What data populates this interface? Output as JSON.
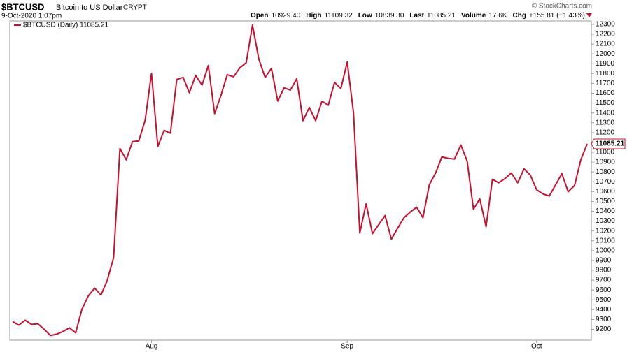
{
  "chart_data": {
    "type": "line",
    "title": "$BTCUSD",
    "subtitle": "Bitcoin to US Dollar",
    "exchange": "CRYPT",
    "date": "9-Oct-2020 1:07pm",
    "watermark": "© StockCharts.com",
    "stats": [
      {
        "label": "Open",
        "value": "10929.40"
      },
      {
        "label": "High",
        "value": "11109.32"
      },
      {
        "label": "Low",
        "value": "10839.30"
      },
      {
        "label": "Last",
        "value": "11085.21"
      },
      {
        "label": "Volume",
        "value": "17.6K"
      },
      {
        "label": "Chg",
        "value": "+155.81 (+1.43%)"
      }
    ],
    "last_value_label": "11085.21",
    "categories": [
      null,
      null,
      null,
      null,
      null,
      null,
      null,
      null,
      null,
      null,
      null,
      null,
      null,
      null,
      null,
      null,
      null,
      null,
      null,
      null,
      null,
      null,
      "Aug",
      null,
      null,
      null,
      null,
      null,
      null,
      null,
      null,
      null,
      null,
      null,
      null,
      null,
      null,
      null,
      null,
      null,
      null,
      null,
      null,
      null,
      null,
      null,
      null,
      null,
      null,
      null,
      null,
      null,
      null,
      "Sep",
      null,
      null,
      null,
      null,
      null,
      null,
      null,
      null,
      null,
      null,
      null,
      null,
      null,
      null,
      null,
      null,
      null,
      null,
      null,
      null,
      null,
      null,
      null,
      null,
      null,
      null,
      null,
      null,
      null,
      "Oct",
      null,
      null,
      null,
      null,
      null,
      null,
      null,
      null
    ],
    "series": [
      {
        "name": "$BTCUSD (Daily) 11085.21",
        "color": "#c8102e",
        "values": [
          9279,
          9243,
          9293,
          9250,
          9257,
          9201,
          9137,
          9151,
          9179,
          9215,
          9165,
          9406,
          9541,
          9619,
          9548,
          9697,
          9931,
          11038,
          10924,
          11109,
          11116,
          11328,
          11804,
          11059,
          11222,
          11194,
          11740,
          11761,
          11605,
          11782,
          11683,
          11882,
          11392,
          11577,
          11789,
          11768,
          11860,
          11910,
          12293,
          11945,
          11761,
          11853,
          11520,
          11655,
          11633,
          11747,
          11321,
          11456,
          11321,
          11520,
          11477,
          11711,
          11648,
          11917,
          11399,
          10179,
          10477,
          10172,
          10265,
          10357,
          10116,
          10229,
          10336,
          10392,
          10442,
          10336,
          10669,
          10789,
          10953,
          10938,
          10931,
          11073,
          10910,
          10421,
          10527,
          10243,
          10726,
          10690,
          10733,
          10789,
          10690,
          10832,
          10768,
          10619,
          10577,
          10555,
          10669,
          10782,
          10598,
          10662,
          10924,
          11085.21
        ]
      }
    ],
    "ylim": [
      9090,
      12335
    ],
    "yticks": [
      9200,
      9300,
      9400,
      9500,
      9600,
      9700,
      9800,
      9900,
      10000,
      10100,
      10200,
      10300,
      10400,
      10500,
      10600,
      10700,
      10800,
      10900,
      11000,
      11100,
      11200,
      11300,
      11400,
      11500,
      11600,
      11700,
      11800,
      11900,
      12000,
      12100,
      12200,
      12300
    ],
    "grid": false
  }
}
